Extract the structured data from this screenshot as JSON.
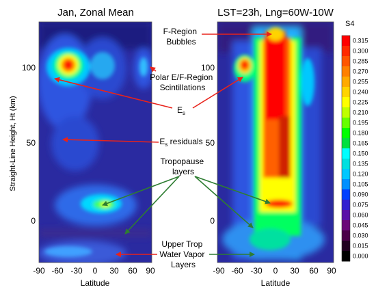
{
  "chart_data": [
    {
      "type": "heatmap",
      "title": "Jan, Zonal Mean",
      "xlabel": "Latitude",
      "ylabel": "Straight-Line Height, Ht (km)",
      "xticks": [
        "-90",
        "-60",
        "-30",
        "0",
        "30",
        "60",
        "90"
      ],
      "yticks": [
        "0",
        "50",
        "100"
      ],
      "xlim": [
        -90,
        90
      ],
      "ylim": [
        -33,
        130
      ],
      "colorbar_label": "S4",
      "features": [
        {
          "name": "Polar E/F-Region Scintillations",
          "lat": -55,
          "ht": 102,
          "s4": 0.31
        },
        {
          "name": "Polar E/F-Region Scintillations (north)",
          "lat": 80,
          "ht": 98,
          "s4": 0.13
        },
        {
          "name": "Es",
          "lat": -42,
          "ht": 93,
          "s4": 0.16
        },
        {
          "name": "Es residuals",
          "lat": -40,
          "ht": 55,
          "s4": 0.1
        },
        {
          "name": "Tropopause layers",
          "lat": 10,
          "ht": 10,
          "s4": 0.2
        },
        {
          "name": "Upper Trop Water Vapor Layers",
          "lat": 0,
          "ht": -20,
          "s4": 0.1
        }
      ]
    },
    {
      "type": "heatmap",
      "title": "LST=23h, Lng=60W-10W",
      "xlabel": "Latitude",
      "xticks": [
        "-90",
        "-60",
        "-30",
        "0",
        "30",
        "60",
        "90"
      ],
      "yticks": [
        "0",
        "50",
        "100"
      ],
      "xlim": [
        -90,
        90
      ],
      "ylim": [
        -33,
        130
      ],
      "colorbar_label": "S4",
      "features": [
        {
          "name": "F-Region Bubbles",
          "lat": 0,
          "ht": 90,
          "s4": 0.31
        },
        {
          "name": "Polar E/F-Region Scintillations",
          "lat": -58,
          "ht": 100,
          "s4": 0.31
        },
        {
          "name": "Tropopause layers",
          "lat": 5,
          "ht": 10,
          "s4": 0.3
        },
        {
          "name": "Upper Trop Water Vapor Layers",
          "lat": 0,
          "ht": -20,
          "s4": 0.15
        }
      ]
    }
  ],
  "colorbar": {
    "label": "S4",
    "ticks": [
      "0.315",
      "0.300",
      "0.285",
      "0.270",
      "0.255",
      "0.240",
      "0.225",
      "0.210",
      "0.195",
      "0.180",
      "0.165",
      "0.150",
      "0.135",
      "0.120",
      "0.105",
      "0.090",
      "0.075",
      "0.060",
      "0.045",
      "0.030",
      "0.015",
      "0.000"
    ],
    "colors": [
      "#ff0000",
      "#ff2a00",
      "#ff5500",
      "#ff8000",
      "#ffaa00",
      "#ffd400",
      "#ffff00",
      "#bfff00",
      "#66ff00",
      "#00ff00",
      "#00e040",
      "#00ffff",
      "#00e0e0",
      "#00c8ff",
      "#0090ff",
      "#0040ff",
      "#3020d0",
      "#5a10a8",
      "#6a0878",
      "#4a0048",
      "#200020",
      "#000000"
    ]
  },
  "annotations": {
    "f_region": [
      "F-Region",
      "Bubbles"
    ],
    "polar": [
      "Polar E/F-Region",
      "Scintillations"
    ],
    "es": "E",
    "es_sub": "s",
    "es_resid": "E",
    "es_resid_sub": "s",
    "es_resid_tail": " residuals",
    "tropo": [
      "Tropopause",
      "layers"
    ],
    "water": [
      "Upper Trop",
      "Water Vapor",
      "Layers"
    ]
  }
}
